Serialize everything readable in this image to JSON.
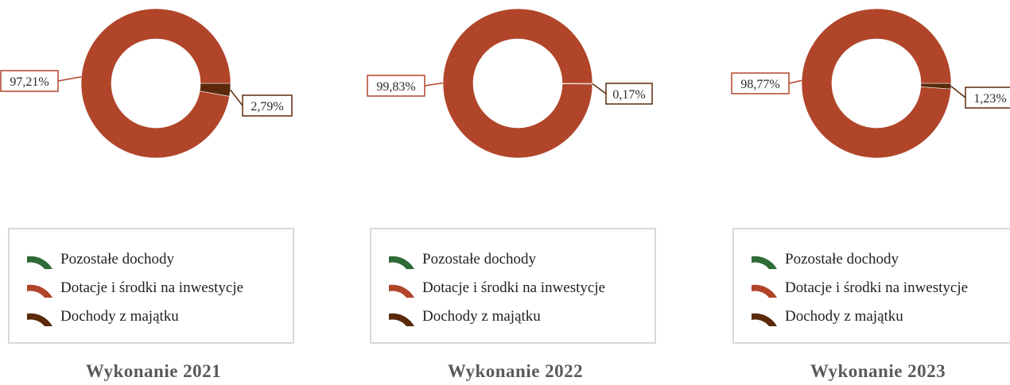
{
  "chart_data": [
    {
      "type": "pie",
      "title": "Wykonanie 2021",
      "categories": [
        "Pozostałe dochody",
        "Dotacje i środki na inwestycje",
        "Dochody z majątku"
      ],
      "values": [
        0,
        97.21,
        2.79
      ],
      "data_labels": [
        "",
        "97,21%",
        "2,79%"
      ]
    },
    {
      "type": "pie",
      "title": "Wykonanie 2022",
      "categories": [
        "Pozostałe dochody",
        "Dotacje i środki na inwestycje",
        "Dochody z majątku"
      ],
      "values": [
        0,
        99.83,
        0.17
      ],
      "data_labels": [
        "",
        "99,83%",
        "0,17%"
      ]
    },
    {
      "type": "pie",
      "title": "Wykonanie 2023",
      "categories": [
        "Pozostałe dochody",
        "Dotacje i środki na inwestycje",
        "Dochody z majątku"
      ],
      "values": [
        0,
        98.77,
        1.23
      ],
      "data_labels": [
        "",
        "98,77%",
        "1,23%"
      ]
    }
  ],
  "legend": {
    "items": [
      "Pozostałe dochody",
      "Dotacje i środki na inwestycje",
      "Dochody z majątku"
    ]
  },
  "colors": {
    "pozostale": "#2e6b35",
    "dotacje": "#b0452a",
    "majatek": "#5a2a0a",
    "legend_border": "#d9d9d9"
  }
}
